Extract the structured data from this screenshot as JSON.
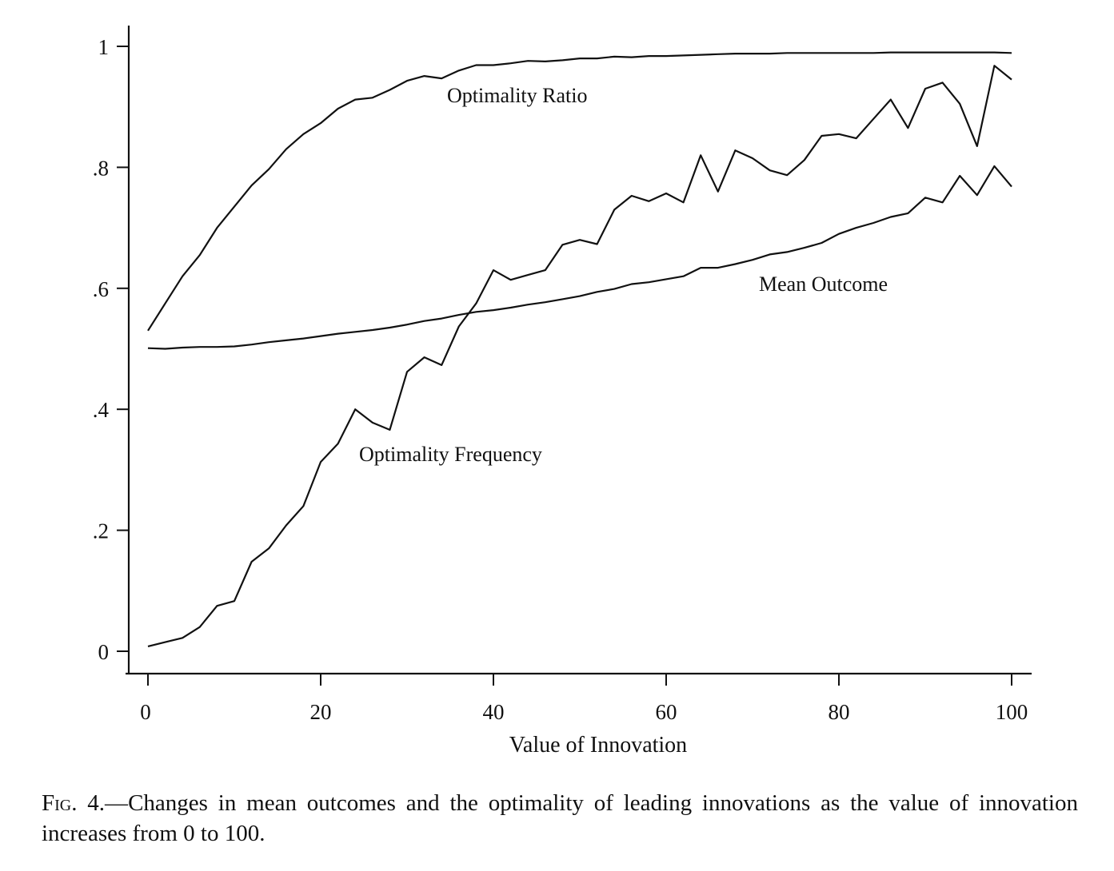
{
  "chart_data": {
    "type": "line",
    "xlabel": "Value of Innovation",
    "ylabel": "",
    "xlim": [
      0,
      100
    ],
    "ylim": [
      0,
      1
    ],
    "xticks": [
      0,
      20,
      40,
      60,
      80,
      100
    ],
    "xtick_labels": [
      "0",
      "20",
      "40",
      "60",
      "80",
      "100"
    ],
    "yticks": [
      0,
      0.2,
      0.4,
      0.6,
      0.8,
      1
    ],
    "ytick_labels": [
      "0",
      ".2",
      ".4",
      ".6",
      ".8",
      "1"
    ],
    "grid": false,
    "legend": "none",
    "series": [
      {
        "name": "Optimality Ratio",
        "x": [
          0,
          2,
          4,
          6,
          8,
          10,
          12,
          14,
          16,
          18,
          20,
          22,
          24,
          26,
          28,
          30,
          32,
          34,
          36,
          38,
          40,
          42,
          44,
          46,
          48,
          50,
          52,
          54,
          56,
          58,
          60,
          62,
          64,
          66,
          68,
          70,
          72,
          74,
          76,
          78,
          80,
          82,
          84,
          86,
          88,
          90,
          92,
          94,
          96,
          98,
          100
        ],
        "values": [
          0.53,
          0.575,
          0.62,
          0.655,
          0.7,
          0.735,
          0.77,
          0.797,
          0.83,
          0.855,
          0.873,
          0.897,
          0.912,
          0.915,
          0.928,
          0.943,
          0.951,
          0.947,
          0.96,
          0.969,
          0.969,
          0.972,
          0.976,
          0.975,
          0.977,
          0.98,
          0.98,
          0.983,
          0.982,
          0.984,
          0.984,
          0.985,
          0.986,
          0.987,
          0.988,
          0.988,
          0.988,
          0.989,
          0.989,
          0.989,
          0.989,
          0.989,
          0.989,
          0.99,
          0.99,
          0.99,
          0.99,
          0.99,
          0.99,
          0.99,
          0.989
        ]
      },
      {
        "name": "Mean Outcome",
        "x": [
          0,
          2,
          4,
          6,
          8,
          10,
          12,
          14,
          16,
          18,
          20,
          22,
          24,
          26,
          28,
          30,
          32,
          34,
          36,
          38,
          40,
          42,
          44,
          46,
          48,
          50,
          52,
          54,
          56,
          58,
          60,
          62,
          64,
          66,
          68,
          70,
          72,
          74,
          76,
          78,
          80,
          82,
          84,
          86,
          88,
          90,
          92,
          94,
          96,
          98,
          100
        ],
        "values": [
          0.501,
          0.5,
          0.502,
          0.503,
          0.503,
          0.504,
          0.507,
          0.511,
          0.514,
          0.517,
          0.521,
          0.525,
          0.528,
          0.531,
          0.535,
          0.54,
          0.546,
          0.55,
          0.556,
          0.561,
          0.564,
          0.568,
          0.573,
          0.577,
          0.582,
          0.587,
          0.594,
          0.599,
          0.607,
          0.61,
          0.615,
          0.62,
          0.634,
          0.634,
          0.64,
          0.647,
          0.656,
          0.66,
          0.667,
          0.675,
          0.69,
          0.7,
          0.708,
          0.718,
          0.724,
          0.75,
          0.742,
          0.786,
          0.754,
          0.802,
          0.768
        ]
      },
      {
        "name": "Optimality Frequency",
        "x": [
          0,
          2,
          4,
          6,
          8,
          10,
          12,
          14,
          16,
          18,
          20,
          22,
          24,
          26,
          28,
          30,
          32,
          34,
          36,
          38,
          40,
          42,
          44,
          46,
          48,
          50,
          52,
          54,
          56,
          58,
          60,
          62,
          64,
          66,
          68,
          70,
          72,
          74,
          76,
          78,
          80,
          82,
          84,
          86,
          88,
          90,
          92,
          94,
          96,
          98,
          100
        ],
        "values": [
          0.008,
          0.015,
          0.022,
          0.04,
          0.075,
          0.083,
          0.148,
          0.17,
          0.208,
          0.24,
          0.313,
          0.343,
          0.4,
          0.378,
          0.366,
          0.462,
          0.486,
          0.473,
          0.537,
          0.575,
          0.63,
          0.614,
          0.622,
          0.63,
          0.672,
          0.68,
          0.673,
          0.73,
          0.753,
          0.744,
          0.757,
          0.742,
          0.82,
          0.76,
          0.828,
          0.815,
          0.795,
          0.787,
          0.812,
          0.852,
          0.855,
          0.848,
          0.88,
          0.912,
          0.865,
          0.93,
          0.94,
          0.905,
          0.835,
          0.968,
          0.945
        ]
      }
    ],
    "annotations": [
      {
        "text": "Optimality Ratio"
      },
      {
        "text": "Mean Outcome"
      },
      {
        "text": "Optimality Frequency"
      }
    ]
  },
  "caption": {
    "fig_label": "Fig. 4.—",
    "text": "Changes in mean outcomes and the optimality of leading innovations as the value of innovation increases from 0 to 100.",
    "highlight_color": "#7ff0f8"
  }
}
